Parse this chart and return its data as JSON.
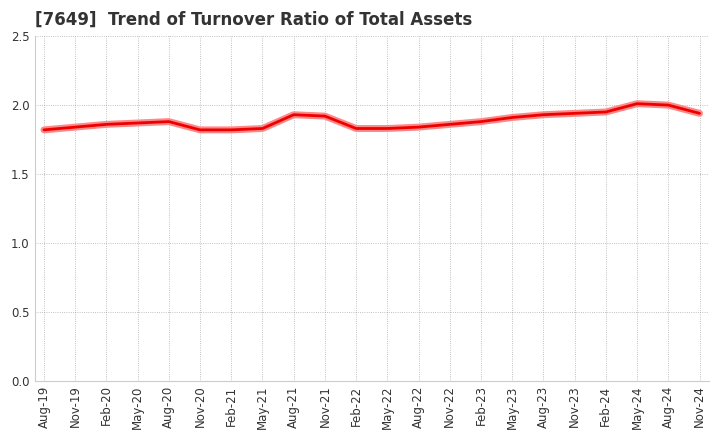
{
  "title": "[7649]  Trend of Turnover Ratio of Total Assets",
  "x_labels": [
    "Aug-19",
    "Nov-19",
    "Feb-20",
    "May-20",
    "Aug-20",
    "Nov-20",
    "Feb-21",
    "May-21",
    "Aug-21",
    "Nov-21",
    "Feb-22",
    "May-22",
    "Aug-22",
    "Nov-22",
    "Feb-23",
    "May-23",
    "Aug-23",
    "Nov-23",
    "Feb-24",
    "May-24",
    "Aug-24",
    "Nov-24"
  ],
  "values": [
    1.82,
    1.84,
    1.86,
    1.87,
    1.88,
    1.82,
    1.82,
    1.83,
    1.93,
    1.92,
    1.83,
    1.83,
    1.84,
    1.86,
    1.88,
    1.91,
    1.93,
    1.94,
    1.95,
    2.01,
    2.0,
    1.94
  ],
  "line_color": "#EE0000",
  "line_color_outer": "#FF8888",
  "background_color": "#FFFFFF",
  "plot_bg_color": "#FFFFFF",
  "grid_color": "#999999",
  "title_color": "#333333",
  "ylim": [
    0.0,
    2.5
  ],
  "yticks": [
    0.0,
    0.5,
    1.0,
    1.5,
    2.0,
    2.5
  ],
  "title_fontsize": 12,
  "tick_fontsize": 8.5
}
